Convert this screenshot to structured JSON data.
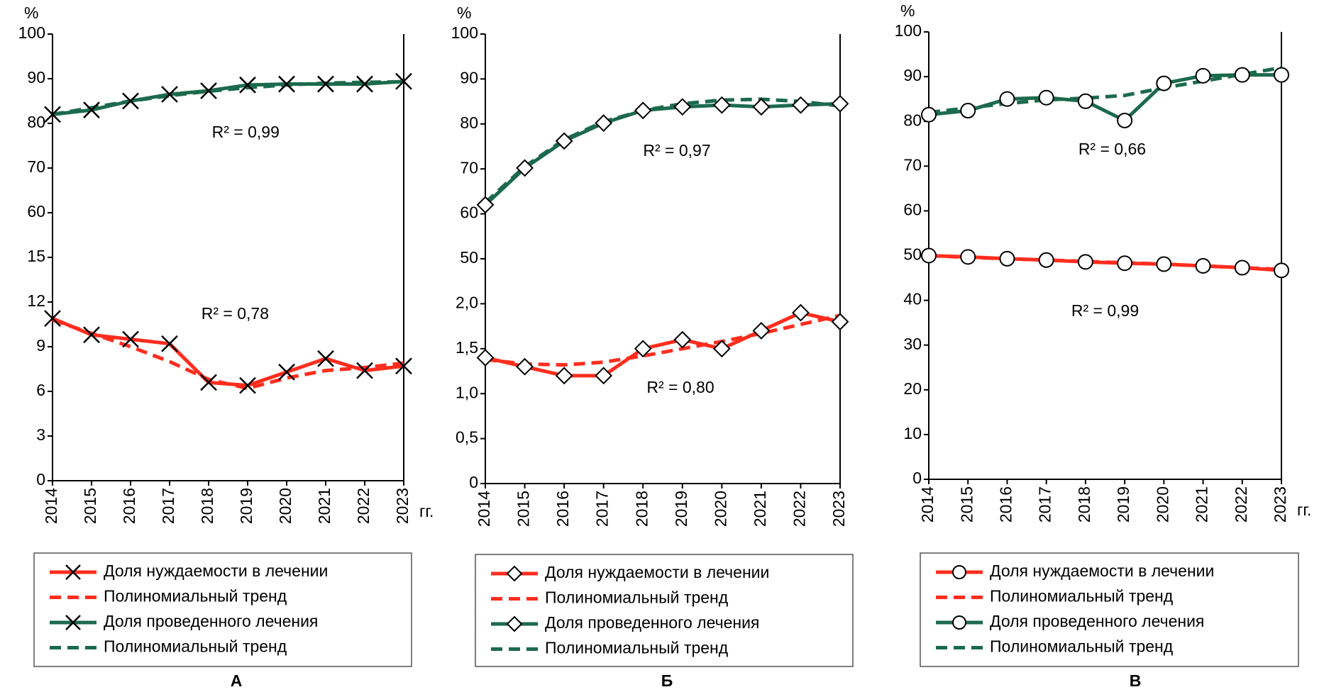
{
  "chart_data": [
    {
      "type": "line",
      "label": "А",
      "y_unit": "%",
      "x_unit": "гг.",
      "marker": "x",
      "categories": [
        "2014",
        "2015",
        "2016",
        "2017",
        "2018",
        "2019",
        "2020",
        "2021",
        "2022",
        "2023"
      ],
      "ylim": [
        0,
        100
      ],
      "yticks": [
        0,
        3,
        6,
        9,
        12,
        15,
        60,
        70,
        80,
        90,
        100
      ],
      "series": [
        {
          "name": "Доля нуждаемости в лечении",
          "color": "#ff2d1e",
          "style": "solid",
          "markers": true,
          "values": [
            10.9,
            9.8,
            9.5,
            9.2,
            6.6,
            6.4,
            7.3,
            8.2,
            7.4,
            7.7
          ]
        },
        {
          "name": "Полиномиальный тренд",
          "color": "#ff2d1e",
          "style": "dashed",
          "markers": false,
          "values": [
            10.8,
            9.9,
            9.0,
            8.0,
            6.8,
            6.2,
            6.9,
            7.4,
            7.6,
            7.9
          ]
        },
        {
          "name": "Доля проведенного лечения",
          "color": "#1c6a4e",
          "style": "solid",
          "markers": true,
          "values": [
            82,
            83,
            85,
            86.5,
            87.3,
            88.6,
            88.8,
            88.8,
            88.8,
            89.4
          ]
        },
        {
          "name": "Полиномиальный тренд",
          "color": "#1c6a4e",
          "style": "dashed",
          "markers": false,
          "values": [
            82,
            83.5,
            85,
            86.2,
            87.2,
            88,
            88.6,
            89,
            89.2,
            89.3
          ]
        }
      ],
      "annotations": [
        {
          "text": "R² = 0,99"
        },
        {
          "text": "R² = 0,78"
        }
      ]
    },
    {
      "type": "line",
      "label": "Б",
      "y_unit": "%",
      "x_unit": null,
      "marker": "diamond",
      "categories": [
        "2014",
        "2015",
        "2016",
        "2017",
        "2018",
        "2019",
        "2020",
        "2021",
        "2022",
        "2023"
      ],
      "ylim": [
        0,
        100
      ],
      "yticks": [
        0,
        {
          "value": 0.5,
          "label": "0,5"
        },
        {
          "value": 1.0,
          "label": "1,0"
        },
        {
          "value": 1.5,
          "label": "1,5"
        },
        {
          "value": 2.0,
          "label": "2,0"
        },
        50,
        60,
        70,
        80,
        90,
        100
      ],
      "series": [
        {
          "name": "Доля нуждаемости в лечении",
          "color": "#ff2d1e",
          "style": "solid",
          "markers": true,
          "values": [
            1.4,
            1.3,
            1.2,
            1.2,
            1.5,
            1.6,
            1.5,
            1.7,
            1.9,
            1.8
          ]
        },
        {
          "name": "Полиномиальный тренд",
          "color": "#ff2d1e",
          "style": "dashed",
          "markers": false,
          "values": [
            1.38,
            1.33,
            1.32,
            1.35,
            1.42,
            1.5,
            1.58,
            1.67,
            1.77,
            1.87
          ]
        },
        {
          "name": "Доля проведенного лечения",
          "color": "#1c6a4e",
          "style": "solid",
          "markers": true,
          "values": [
            62,
            70.2,
            76.2,
            80.2,
            83,
            83.8,
            84.2,
            83.8,
            84.2,
            84.5
          ]
        },
        {
          "name": "Полиномиальный тренд",
          "color": "#1c6a4e",
          "style": "dashed",
          "markers": false,
          "values": [
            62.5,
            70.5,
            76.5,
            80.5,
            83,
            84.5,
            85.3,
            85.5,
            85,
            84
          ]
        }
      ],
      "annotations": [
        {
          "text": "R² = 0,97"
        },
        {
          "text": "R² = 0,80"
        }
      ]
    },
    {
      "type": "line",
      "label": "В",
      "y_unit": "%",
      "x_unit": "гг.",
      "marker": "circle",
      "categories": [
        "2014",
        "2015",
        "2016",
        "2017",
        "2018",
        "2019",
        "2020",
        "2021",
        "2022",
        "2023"
      ],
      "ylim": [
        0,
        100
      ],
      "yticks": [
        0,
        10,
        20,
        30,
        40,
        50,
        60,
        70,
        80,
        90,
        100
      ],
      "series": [
        {
          "name": "Доля нуждаемости в лечении",
          "color": "#ff2d1e",
          "style": "solid",
          "markers": true,
          "values": [
            50,
            49.7,
            49.3,
            49,
            48.6,
            48.3,
            48.1,
            47.7,
            47.3,
            46.7
          ]
        },
        {
          "name": "Полиномиальный тренд",
          "color": "#ff2d1e",
          "style": "dashed",
          "markers": false,
          "values": [
            50,
            49.6,
            49.3,
            49,
            48.7,
            48.4,
            48.1,
            47.7,
            47.3,
            46.9
          ]
        },
        {
          "name": "Доля проведенного лечения",
          "color": "#1c6a4e",
          "style": "solid",
          "markers": true,
          "values": [
            81.5,
            82.4,
            85,
            85.3,
            84.5,
            80.2,
            88.5,
            90.2,
            90.4,
            90.4
          ]
        },
        {
          "name": "Полиномиальный тренд",
          "color": "#1c6a4e",
          "style": "dashed",
          "markers": false,
          "values": [
            82,
            83,
            84,
            84.8,
            85.2,
            85.8,
            87.5,
            89,
            90.5,
            92
          ]
        }
      ],
      "annotations": [
        {
          "text": "R² = 0,66"
        },
        {
          "text": "R² = 0,99"
        }
      ]
    }
  ]
}
